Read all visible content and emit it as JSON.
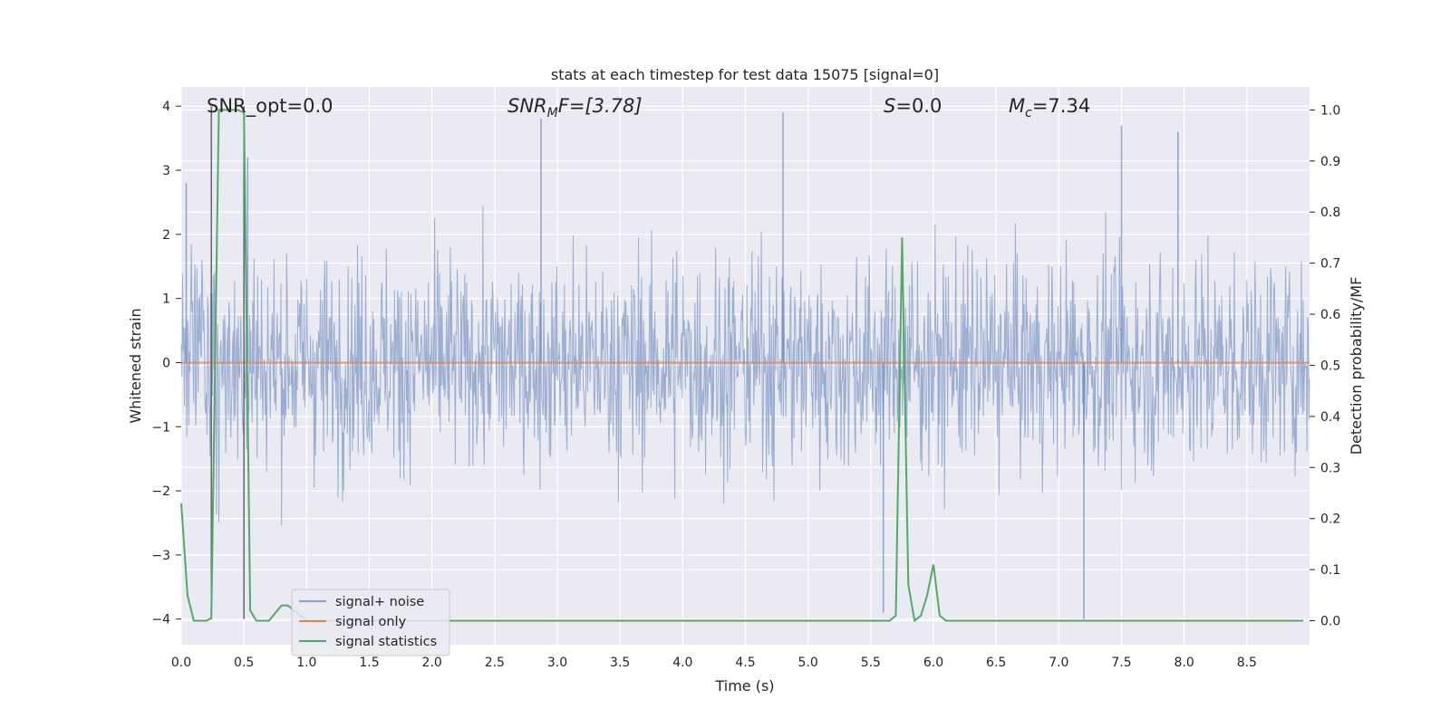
{
  "chart_data": {
    "type": "line",
    "title": "stats at each timestep for test data 15075 [signal=0]",
    "xlabel": "Time (s)",
    "ylabel": "Whitened strain",
    "y2label": "Detection probability/MF",
    "xlim": [
      0.0,
      9.0
    ],
    "ylim": [
      -4.4,
      4.3
    ],
    "y2lim": [
      -0.047,
      1.045
    ],
    "xticks": [
      "0.0",
      "0.5",
      "1.0",
      "1.5",
      "2.0",
      "2.5",
      "3.0",
      "3.5",
      "4.0",
      "4.5",
      "5.0",
      "5.5",
      "6.0",
      "6.5",
      "7.0",
      "7.5",
      "8.0",
      "8.5"
    ],
    "yticks": [
      "4",
      "3",
      "2",
      "1",
      "0",
      "−1",
      "−2",
      "−3",
      "−4"
    ],
    "y2ticks": [
      "1.0",
      "0.9",
      "0.8",
      "0.7",
      "0.6",
      "0.5",
      "0.4",
      "0.3",
      "0.2",
      "0.1",
      "0.0"
    ],
    "annotations": {
      "snr_opt": "SNR_opt=0.0",
      "snr_mf_base": "SNR",
      "snr_mf_sub": "M",
      "snr_mf_rest": "F=[3.78]",
      "s_base": "S",
      "s_rest": "=0.0",
      "mc_base": "M",
      "mc_sub": "c",
      "mc_rest": "=7.34"
    },
    "vertical_markers_x": [
      0.24,
      0.5
    ],
    "series": [
      {
        "name": "signal+ noise",
        "color": "#4c72b0",
        "style": "noise-band",
        "approx_envelope": [
          -2.2,
          2.2
        ],
        "notable_peaks": [
          [
            0.04,
            2.8
          ],
          [
            0.53,
            3.2
          ],
          [
            2.87,
            3.8
          ],
          [
            4.8,
            3.9
          ],
          [
            5.6,
            -3.9
          ],
          [
            7.2,
            -4.0
          ],
          [
            7.5,
            3.7
          ],
          [
            7.95,
            3.6
          ]
        ]
      },
      {
        "name": "signal only",
        "color": "#dd8452",
        "values_note": "flat at 0",
        "x": [
          0.0,
          9.0
        ],
        "y": [
          0.0,
          0.0
        ]
      },
      {
        "name": "signal statistics",
        "color": "#55a868",
        "axis": "right",
        "x": [
          0.0,
          0.05,
          0.1,
          0.2,
          0.24,
          0.27,
          0.3,
          0.34,
          0.4,
          0.45,
          0.5,
          0.55,
          0.6,
          0.65,
          0.7,
          0.8,
          0.85,
          1.0,
          1.5,
          2.0,
          2.5,
          3.0,
          4.0,
          5.0,
          5.5,
          5.6,
          5.65,
          5.7,
          5.75,
          5.8,
          5.85,
          5.9,
          5.95,
          6.0,
          6.05,
          6.1,
          6.15,
          6.2,
          7.0,
          8.0,
          8.95
        ],
        "y": [
          0.23,
          0.05,
          0.0,
          0.0,
          0.005,
          0.5,
          1.0,
          1.0,
          1.0,
          1.0,
          0.995,
          0.02,
          0.0,
          0.0,
          0.0,
          0.03,
          0.03,
          0.0,
          0.0,
          0.0,
          0.0,
          0.0,
          0.0,
          0.0,
          0.0,
          0.0,
          0.0,
          0.01,
          0.75,
          0.07,
          0.0,
          0.01,
          0.05,
          0.11,
          0.01,
          0.0,
          0.0,
          0.0,
          0.0,
          0.0,
          0.0
        ]
      }
    ],
    "legend": {
      "location": "lower-left-center",
      "entries": [
        {
          "label": "signal+ noise",
          "color": "#4c72b0"
        },
        {
          "label": "signal only",
          "color": "#dd8452"
        },
        {
          "label": "signal statistics",
          "color": "#55a868"
        }
      ]
    }
  }
}
